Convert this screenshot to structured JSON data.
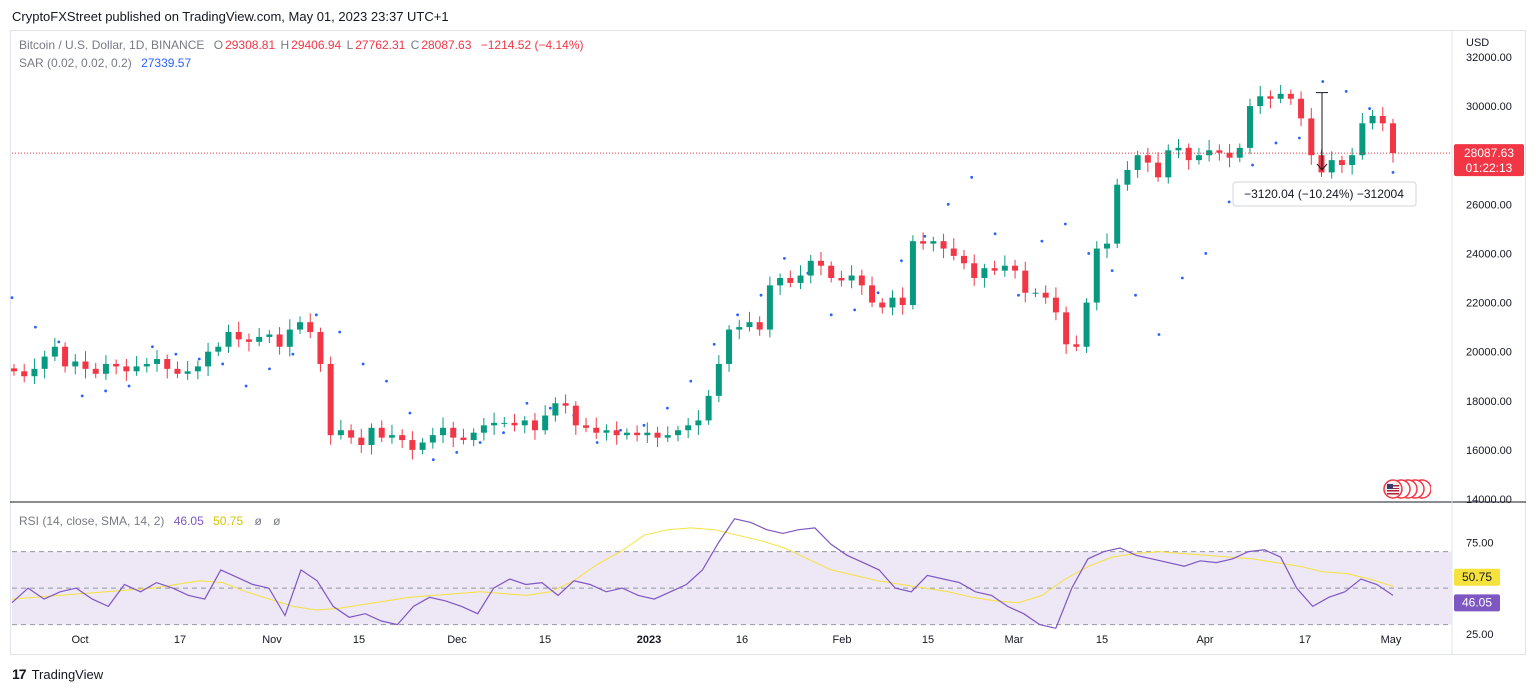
{
  "publisher": "CryptoFXStreet published on TradingView.com, May 01, 2023 23:37 UTC+1",
  "brand": "TradingView",
  "colors": {
    "up": "#089981",
    "down": "#f23645",
    "sar": "#2962ff",
    "rsi": "#7e57c2",
    "rsi_ma": "#f5e23c",
    "band": "#ede7f6"
  },
  "legend": {
    "symbol": "Bitcoin / U.S. Dollar, 1D, BINANCE",
    "open_label": "O",
    "open": "29308.81",
    "high_label": "H",
    "high": "29406.94",
    "low_label": "L",
    "low": "27762.31",
    "close_label": "C",
    "close": "28087.63",
    "change": "−1214.52 (−4.14%)",
    "sar_label": "SAR (0.02, 0.02, 0.2)",
    "sar_value": "27339.57",
    "rsi_label": "RSI (14, close, SMA, 14, 2)",
    "rsi_value": "46.05",
    "rsi_ma_value": "50.75",
    "rsi_extra1": "ø",
    "rsi_extra2": "ø"
  },
  "price_badge": {
    "price": "28087.63",
    "countdown": "01:22:13"
  },
  "measure_label": "−3120.04 (−10.24%) −312004",
  "rsi_badges": {
    "ma": "50.75",
    "rsi": "46.05"
  },
  "chart_data": [
    {
      "type": "candlestick",
      "title": "Bitcoin / U.S. Dollar, 1D, BINANCE",
      "y_axis_label": "USD",
      "y_ticks": [
        "32000.00",
        "30000.00",
        "28000.00",
        "26000.00",
        "24000.00",
        "22000.00",
        "20000.00",
        "18000.00",
        "16000.00",
        "14000.00"
      ],
      "ylim": [
        14000,
        32000
      ],
      "x_ticks": [
        "Oct",
        "17",
        "Nov",
        "15",
        "Dec",
        "15",
        "2023",
        "16",
        "Feb",
        "15",
        "Mar",
        "15",
        "Apr",
        "17",
        "May"
      ],
      "last_price": 28087.63,
      "series": [
        {
          "name": "close_path",
          "values": [
            19200,
            19000,
            19300,
            19800,
            20200,
            19400,
            19600,
            19300,
            19100,
            19500,
            19400,
            19200,
            19400,
            19500,
            19700,
            19300,
            19100,
            19200,
            19400,
            20000,
            20200,
            20800,
            20500,
            20400,
            20600,
            20700,
            20200,
            20900,
            21200,
            20800,
            19500,
            16600,
            16800,
            16500,
            16200,
            16900,
            16500,
            16600,
            16400,
            16000,
            16300,
            16600,
            16900,
            16500,
            16400,
            16700,
            17000,
            17100,
            17100,
            17000,
            17200,
            16800,
            17400,
            17900,
            17800,
            17000,
            16900,
            16700,
            16800,
            16600,
            16700,
            16600,
            16700,
            16500,
            16600,
            16800,
            17000,
            17200,
            18200,
            19500,
            20900,
            21000,
            21200,
            20900,
            22700,
            23000,
            22800,
            23100,
            23700,
            23500,
            23000,
            22900,
            23100,
            22700,
            22000,
            21800,
            22200,
            21900,
            24500,
            24400,
            24500,
            24200,
            23900,
            23600,
            23000,
            23400,
            23300,
            23500,
            23300,
            22400,
            22400,
            22200,
            21600,
            20300,
            20200,
            22000,
            24200,
            24400,
            26800,
            27400,
            28000,
            27700,
            27100,
            28200,
            28300,
            27800,
            28000,
            28200,
            28100,
            27900,
            28300,
            30000,
            30400,
            30300,
            30500,
            30300,
            29500,
            28000,
            27300,
            27800,
            27600,
            28000,
            29300,
            29600,
            29300,
            28087
          ]
        },
        {
          "name": "SAR",
          "values": [
            22200,
            21000,
            20400,
            18200,
            18400,
            18600,
            20200,
            19900,
            19700,
            19500,
            18600,
            19300,
            19900,
            21500,
            20800,
            19500,
            18800,
            17500,
            15600,
            15900,
            16300,
            16700,
            17900,
            17700,
            17400,
            16300,
            16800,
            17000,
            17700,
            18800,
            20300,
            21500,
            22300,
            23800,
            23200,
            21500,
            21700,
            22400,
            23700,
            24700,
            26000,
            27100,
            24800,
            22300,
            24500,
            25200,
            24000,
            23300,
            22300,
            20700,
            23000,
            24000,
            26100,
            27600,
            28500,
            28700,
            31000,
            30600,
            29900,
            27300
          ]
        },
        {
          "name": "RSI",
          "values": [
            42,
            50,
            44,
            48,
            50,
            44,
            40,
            52,
            48,
            53,
            50,
            46,
            44,
            60,
            56,
            52,
            50,
            35,
            60,
            54,
            40,
            34,
            36,
            32,
            30,
            40,
            45,
            43,
            40,
            36,
            50,
            55,
            52,
            53,
            46,
            54,
            52,
            48,
            50,
            46,
            44,
            48,
            52,
            60,
            75,
            88,
            86,
            82,
            80,
            82,
            83,
            74,
            68,
            64,
            60,
            50,
            48,
            57,
            55,
            53,
            48,
            46,
            40,
            36,
            30,
            28,
            50,
            66,
            70,
            72,
            68,
            66,
            64,
            62,
            65,
            64,
            66,
            70,
            71,
            67,
            50,
            40,
            45,
            48,
            55,
            52,
            46
          ],
          "ylim": [
            0,
            100
          ]
        },
        {
          "name": "RSI MA",
          "values": [
            44,
            45,
            46,
            47,
            48,
            49,
            50,
            52,
            54,
            53,
            48,
            44,
            40,
            38,
            39,
            41,
            43,
            45,
            46,
            47,
            48,
            47,
            46,
            48,
            54,
            63,
            70,
            79,
            82,
            83,
            82,
            79,
            76,
            72,
            66,
            60,
            57,
            54,
            52,
            50,
            48,
            45,
            43,
            42,
            46,
            55,
            62,
            67,
            69,
            70,
            69,
            68,
            67,
            66,
            64,
            62,
            59,
            58,
            55,
            51
          ],
          "ylim": [
            0,
            100
          ]
        }
      ]
    },
    {
      "type": "line",
      "title": "RSI (14, close, SMA, 14, 2)",
      "y_ticks": [
        "75.00",
        "25.00"
      ],
      "ylim": [
        15,
        95
      ],
      "band": [
        30,
        70
      ]
    }
  ]
}
